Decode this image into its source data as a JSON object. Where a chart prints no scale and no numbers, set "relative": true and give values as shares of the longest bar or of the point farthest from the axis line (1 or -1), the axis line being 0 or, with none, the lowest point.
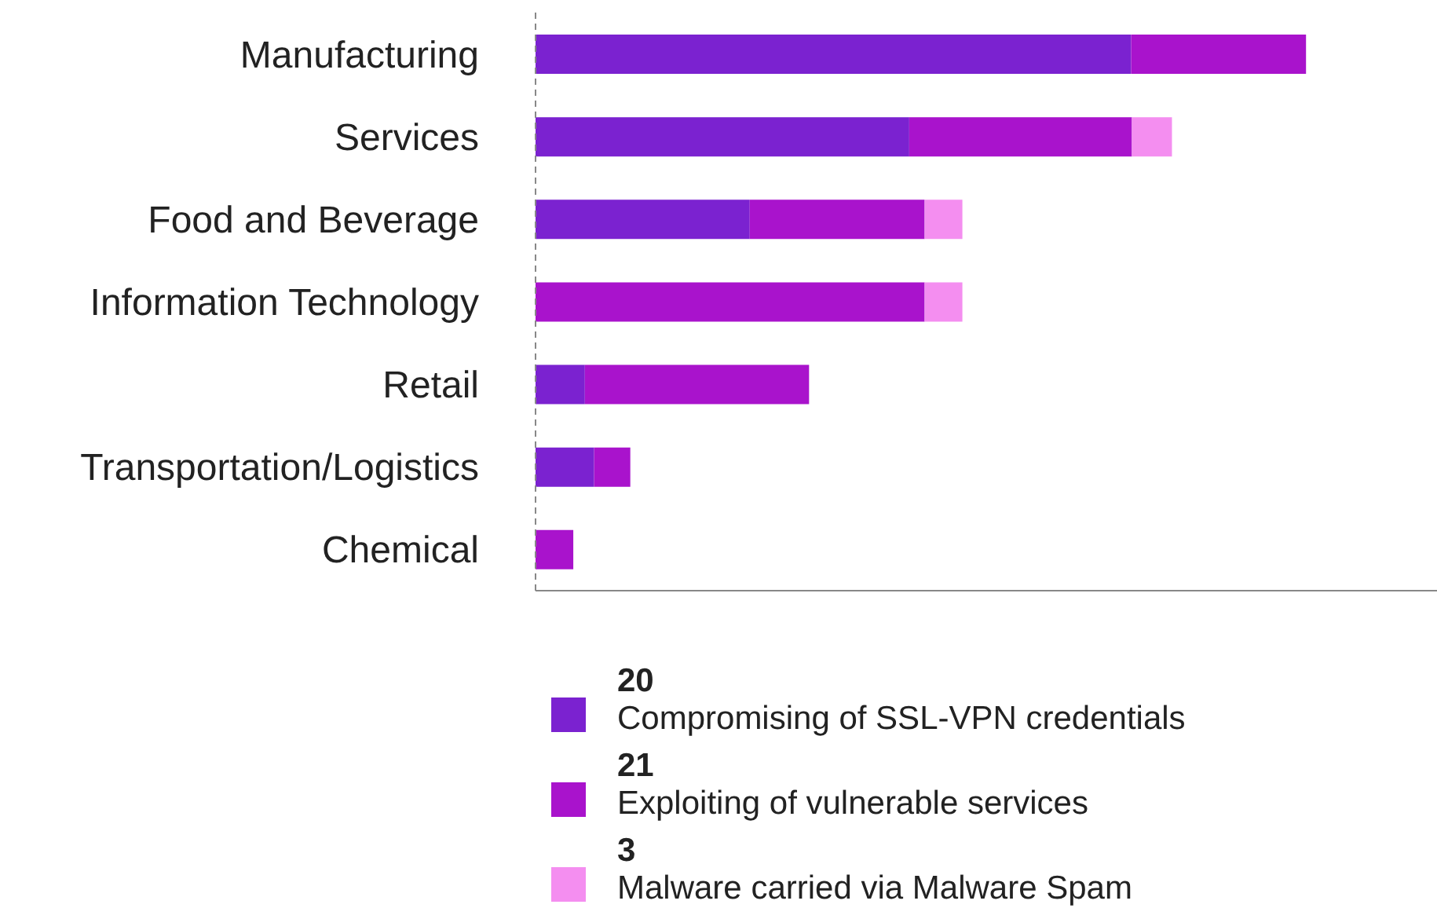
{
  "chart_data": {
    "type": "bar",
    "orientation": "horizontal",
    "stacked": true,
    "relative": true,
    "legend": "bottom",
    "categories": [
      "Manufacturing",
      "Services",
      "Food and Beverage",
      "Information Technology",
      "Retail",
      "Transportation/Logistics",
      "Chemical"
    ],
    "series": [
      {
        "name": "Compromising of SSL-VPN credentials",
        "color": "#7b22d0",
        "values": [
          0.773,
          0.485,
          0.278,
          0,
          0.064,
          0.076,
          0
        ]
      },
      {
        "name": "Exploiting of vulnerable services",
        "color": "#a913cc",
        "values": [
          0.227,
          0.289,
          0.227,
          0.505,
          0.291,
          0.047,
          0.049
        ]
      },
      {
        "name": "Malware carried via Malware Spam",
        "color": "#f48ef0",
        "values": [
          0,
          0.052,
          0.049,
          0.049,
          0,
          0,
          0
        ]
      }
    ],
    "annotations": [
      "20",
      "21",
      "3"
    ]
  }
}
